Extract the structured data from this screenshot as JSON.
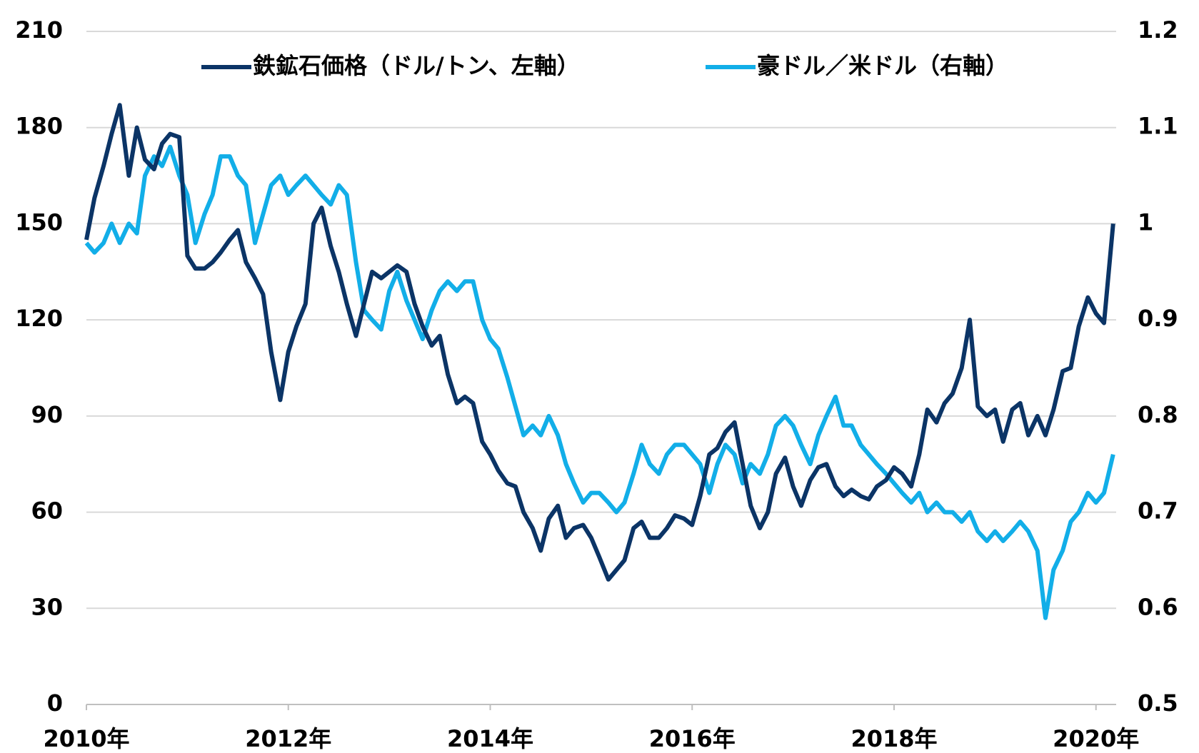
{
  "chart_data": {
    "type": "line",
    "series": [
      {
        "name": "鉄鉱石価格（ドル/トン、左軸）",
        "color": "#0b3466",
        "axis": "y",
        "values": [
          145,
          158,
          168,
          178,
          187,
          165,
          180,
          170,
          167,
          175,
          178,
          177,
          140,
          136,
          136,
          138,
          141,
          145,
          148,
          138,
          133,
          128,
          110,
          95,
          110,
          118,
          125,
          150,
          155,
          143,
          135,
          125,
          115,
          125,
          135,
          133,
          135,
          137,
          135,
          125,
          118,
          112,
          115,
          103,
          94,
          96,
          94,
          82,
          78,
          73,
          69,
          68,
          60,
          55,
          48,
          58,
          62,
          52,
          55,
          56,
          52,
          46,
          39,
          42,
          45,
          55,
          57,
          52,
          52,
          55,
          59,
          58,
          56,
          65,
          78,
          80,
          85,
          88,
          75,
          62,
          55,
          60,
          72,
          77,
          68,
          62,
          70,
          74,
          75,
          68,
          65,
          67,
          65,
          64,
          68,
          70,
          74,
          72,
          68,
          78,
          92,
          88,
          94,
          97,
          105,
          120,
          93,
          90,
          92,
          82,
          92,
          94,
          84,
          90,
          84,
          92,
          104,
          105,
          118,
          127,
          122,
          119,
          150
        ]
      },
      {
        "name": "豪ドル／米ドル（右軸）",
        "color": "#12aee8",
        "axis": "y2",
        "values": [
          0.98,
          0.97,
          0.98,
          1.0,
          0.98,
          1.0,
          0.99,
          1.05,
          1.07,
          1.06,
          1.08,
          1.05,
          1.03,
          0.98,
          1.01,
          1.03,
          1.07,
          1.07,
          1.05,
          1.04,
          0.98,
          1.01,
          1.04,
          1.05,
          1.03,
          1.04,
          1.05,
          1.04,
          1.03,
          1.02,
          1.04,
          1.03,
          0.96,
          0.91,
          0.9,
          0.89,
          0.93,
          0.95,
          0.92,
          0.9,
          0.88,
          0.91,
          0.93,
          0.94,
          0.93,
          0.94,
          0.94,
          0.9,
          0.88,
          0.87,
          0.84,
          0.81,
          0.78,
          0.79,
          0.78,
          0.8,
          0.78,
          0.75,
          0.73,
          0.71,
          0.72,
          0.72,
          0.71,
          0.7,
          0.71,
          0.74,
          0.77,
          0.75,
          0.74,
          0.76,
          0.77,
          0.77,
          0.76,
          0.75,
          0.72,
          0.75,
          0.77,
          0.76,
          0.73,
          0.75,
          0.74,
          0.76,
          0.79,
          0.8,
          0.79,
          0.77,
          0.75,
          0.78,
          0.8,
          0.82,
          0.79,
          0.79,
          0.77,
          0.76,
          0.75,
          0.74,
          0.73,
          0.72,
          0.71,
          0.72,
          0.7,
          0.71,
          0.7,
          0.7,
          0.69,
          0.7,
          0.68,
          0.67,
          0.68,
          0.67,
          0.68,
          0.69,
          0.68,
          0.66,
          0.59,
          0.64,
          0.66,
          0.69,
          0.7,
          0.72,
          0.71,
          0.72,
          0.76
        ]
      }
    ],
    "x": [
      2010.0,
      2010.08,
      2010.17,
      2010.25,
      2010.33,
      2010.42,
      2010.5,
      2010.58,
      2010.67,
      2010.75,
      2010.83,
      2010.92,
      2011.0,
      2011.08,
      2011.17,
      2011.25,
      2011.33,
      2011.42,
      2011.5,
      2011.58,
      2011.67,
      2011.75,
      2011.83,
      2011.92,
      2012.0,
      2012.08,
      2012.17,
      2012.25,
      2012.33,
      2012.42,
      2012.5,
      2012.58,
      2012.67,
      2012.75,
      2012.83,
      2012.92,
      2013.0,
      2013.08,
      2013.17,
      2013.25,
      2013.33,
      2013.42,
      2013.5,
      2013.58,
      2013.67,
      2013.75,
      2013.83,
      2013.92,
      2014.0,
      2014.08,
      2014.17,
      2014.25,
      2014.33,
      2014.42,
      2014.5,
      2014.58,
      2014.67,
      2014.75,
      2014.83,
      2014.92,
      2015.0,
      2015.08,
      2015.17,
      2015.25,
      2015.33,
      2015.42,
      2015.5,
      2015.58,
      2015.67,
      2015.75,
      2015.83,
      2015.92,
      2016.0,
      2016.08,
      2016.17,
      2016.25,
      2016.33,
      2016.42,
      2016.5,
      2016.58,
      2016.67,
      2016.75,
      2016.83,
      2016.92,
      2017.0,
      2017.08,
      2017.17,
      2017.25,
      2017.33,
      2017.42,
      2017.5,
      2017.58,
      2017.67,
      2017.75,
      2017.83,
      2017.92,
      2018.0,
      2018.08,
      2018.17,
      2018.25,
      2018.33,
      2018.42,
      2018.5,
      2018.58,
      2018.67,
      2018.75,
      2018.83,
      2018.92,
      2019.0,
      2019.08,
      2019.17,
      2019.25,
      2019.33,
      2019.42,
      2019.5,
      2019.58,
      2019.67,
      2019.75,
      2019.83,
      2019.92,
      2020.0,
      2020.08,
      2020.17
    ],
    "xlim": [
      2010,
      2020.2
    ],
    "xticks": [
      {
        "value": 2010,
        "label": "2010年"
      },
      {
        "value": 2012,
        "label": "2012年"
      },
      {
        "value": 2014,
        "label": "2014年"
      },
      {
        "value": 2016,
        "label": "2016年"
      },
      {
        "value": 2018,
        "label": "2018年"
      },
      {
        "value": 2020,
        "label": "2020年"
      }
    ],
    "ylim": [
      0,
      210
    ],
    "yticks": [
      0,
      30,
      60,
      90,
      120,
      150,
      180,
      210
    ],
    "y2lim": [
      0.5,
      1.2
    ],
    "y2ticks": [
      0.5,
      0.6,
      0.7,
      0.8,
      0.9,
      1,
      1.1,
      1.2
    ],
    "grid": true,
    "legend": "top"
  }
}
